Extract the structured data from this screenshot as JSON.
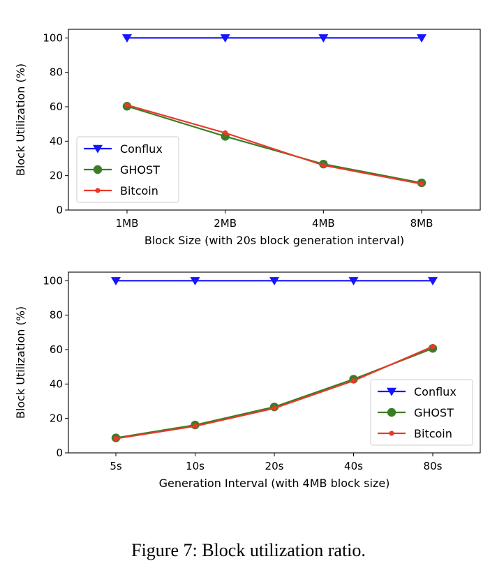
{
  "chart_data": [
    {
      "type": "line",
      "categories": [
        "1MB",
        "2MB",
        "4MB",
        "8MB"
      ],
      "xlabel": "Block Size (with 20s block generation interval)",
      "ylabel": "Block Utilization (%)",
      "ylim": [
        0,
        105
      ],
      "yticks": [
        0,
        20,
        40,
        60,
        80,
        100
      ],
      "grid": false,
      "legend_position": "lower-left",
      "series": [
        {
          "name": "Conflux",
          "color": "#1515ff",
          "marker": "triangle-down",
          "values": [
            100,
            100,
            100,
            100
          ]
        },
        {
          "name": "GHOST",
          "color": "#3a7d27",
          "marker": "circle",
          "values": [
            60.3,
            42.8,
            26.7,
            15.8
          ]
        },
        {
          "name": "Bitcoin",
          "color": "#e8392a",
          "marker": "dot",
          "values": [
            61,
            44.8,
            26,
            15.2
          ]
        }
      ]
    },
    {
      "type": "line",
      "categories": [
        "5s",
        "10s",
        "20s",
        "40s",
        "80s"
      ],
      "xlabel": "Generation Interval (with 4MB block size)",
      "ylabel": "Block Utilization (%)",
      "ylim": [
        0,
        105
      ],
      "yticks": [
        0,
        20,
        40,
        60,
        80,
        100
      ],
      "grid": false,
      "legend_position": "lower-right",
      "series": [
        {
          "name": "Conflux",
          "color": "#1515ff",
          "marker": "triangle-down",
          "values": [
            100,
            100,
            100,
            100,
            100
          ]
        },
        {
          "name": "GHOST",
          "color": "#3a7d27",
          "marker": "circle",
          "values": [
            8.7,
            16.2,
            26.7,
            42.8,
            60.7
          ]
        },
        {
          "name": "Bitcoin",
          "color": "#e8392a",
          "marker": "dot",
          "values": [
            8.3,
            15.5,
            25.9,
            41.9,
            61.8
          ]
        }
      ]
    }
  ],
  "caption": "Figure 7: Block utilization ratio."
}
